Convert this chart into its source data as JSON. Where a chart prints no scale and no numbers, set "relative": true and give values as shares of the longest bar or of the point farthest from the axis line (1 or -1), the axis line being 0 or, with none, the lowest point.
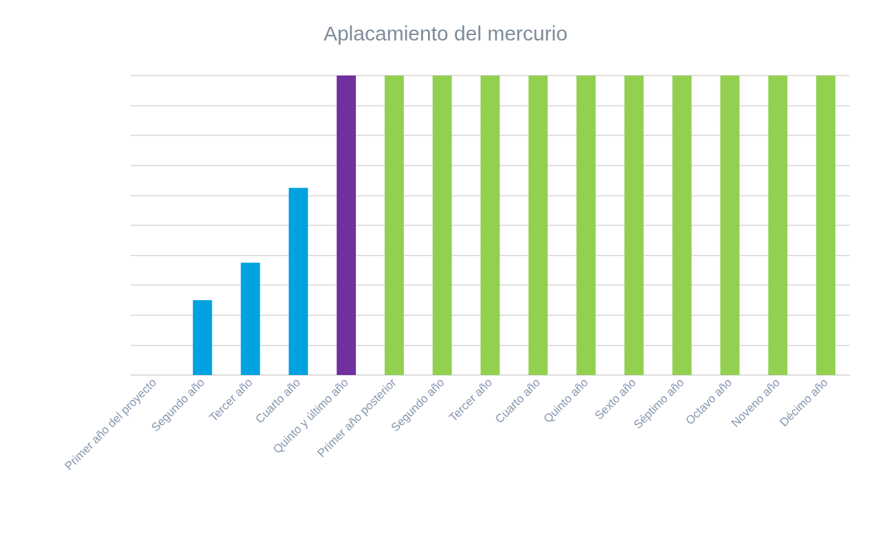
{
  "chart_data": {
    "type": "bar",
    "title": "Aplacamiento del mercurio",
    "relative": true,
    "grid": true,
    "categories": [
      "Primer año del proyecto",
      "Segundo año",
      "Tercer año",
      "Cuarto año",
      "Quinto y último año",
      "Primer año posterior",
      "Segundo año",
      "Tercer año",
      "Cuarto año",
      "Quinto año",
      "Sexto año",
      "Séptimo año",
      "Octavo año",
      "Noveno año",
      "Décimo año"
    ],
    "values": [
      0,
      0.25,
      0.375,
      0.625,
      1,
      1,
      1,
      1,
      1,
      1,
      1,
      1,
      1,
      1,
      1
    ],
    "colors": [
      "#00a2e0",
      "#00a2e0",
      "#00a2e0",
      "#00a2e0",
      "#7030a0",
      "#92d050",
      "#92d050",
      "#92d050",
      "#92d050",
      "#92d050",
      "#92d050",
      "#92d050",
      "#92d050",
      "#92d050",
      "#92d050"
    ]
  }
}
